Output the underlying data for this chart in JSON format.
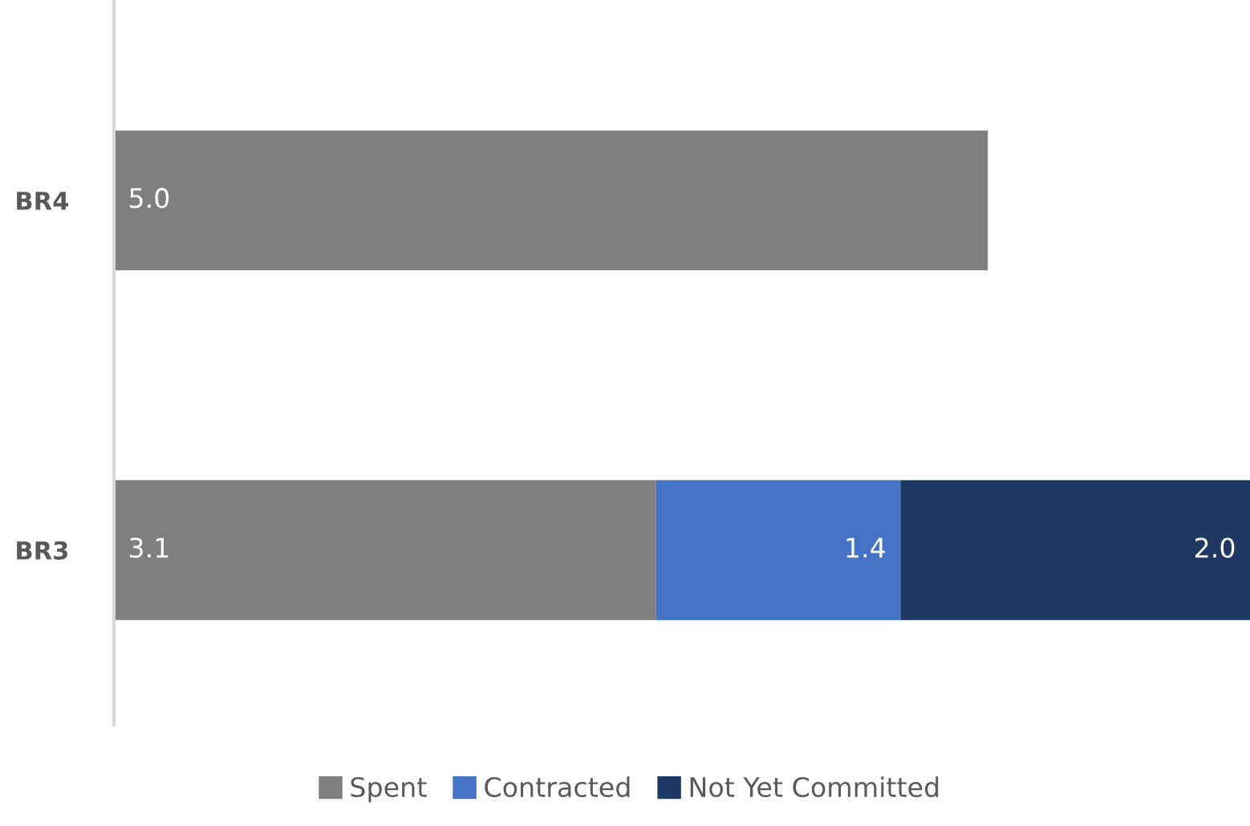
{
  "chart_data": {
    "type": "bar",
    "orientation": "horizontal",
    "stacked": true,
    "categories": [
      "BR4",
      "BR3"
    ],
    "series": [
      {
        "name": "Spent",
        "color": "#7f7f7f",
        "values": [
          5.0,
          3.1
        ],
        "value_labels": [
          "5.0",
          "3.1"
        ]
      },
      {
        "name": "Contracted",
        "color": "#4472c4",
        "values": [
          null,
          1.4
        ],
        "value_labels": [
          null,
          "1.4"
        ]
      },
      {
        "name": "Not Yet Committed",
        "color": "#1f3864",
        "values": [
          null,
          2.0
        ],
        "value_labels": [
          null,
          "2.0"
        ]
      }
    ],
    "xlim": [
      0,
      6.5
    ],
    "tick_labels": "y",
    "legend": "bottom",
    "grid": false
  }
}
